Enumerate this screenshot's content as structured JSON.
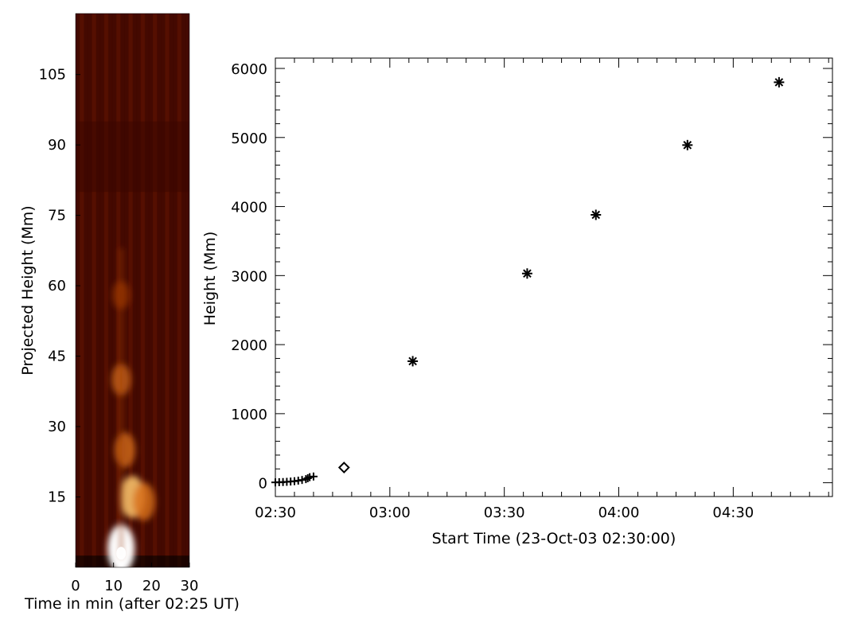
{
  "chart_data": [
    {
      "type": "heatmap",
      "xlabel": "Time in min (after 02:25 UT)",
      "ylabel": "Projected Height (Mm)",
      "xlim": [
        0,
        30
      ],
      "ylim": [
        0,
        118
      ],
      "xticks": [
        "0",
        "10",
        "20",
        "30"
      ],
      "yticks": [
        "15",
        "30",
        "45",
        "60",
        "75",
        "90",
        "105"
      ],
      "colormap": [
        "#000000",
        "#3a0500",
        "#6b1800",
        "#a03a05",
        "#d8701a",
        "#f7c069",
        "#ffffff"
      ],
      "bright_features": [
        {
          "t": 12,
          "h": 4,
          "intensity": 1.0
        },
        {
          "t": 15,
          "h": 15,
          "intensity": 0.78
        },
        {
          "t": 18,
          "h": 14,
          "intensity": 0.62
        },
        {
          "t": 13,
          "h": 25,
          "intensity": 0.5
        },
        {
          "t": 12,
          "h": 40,
          "intensity": 0.38
        },
        {
          "t": 12,
          "h": 58,
          "intensity": 0.25
        }
      ]
    },
    {
      "type": "scatter",
      "title": "",
      "xlabel": "Start Time (23-Oct-03 02:30:00)",
      "ylabel": "Height (Mm)",
      "xticks": [
        "02:30",
        "03:00",
        "03:30",
        "04:00",
        "04:30"
      ],
      "yticks": [
        "0",
        "1000",
        "2000",
        "3000",
        "4000",
        "5000",
        "6000"
      ],
      "xlim_minutes": [
        0,
        146
      ],
      "ylim": [
        -200,
        6150
      ],
      "series": [
        {
          "marker": "plus",
          "points": [
            [
              0,
              5
            ],
            [
              1,
              8
            ],
            [
              2,
              10
            ],
            [
              3,
              13
            ],
            [
              4,
              17
            ],
            [
              5,
              22
            ],
            [
              6,
              30
            ],
            [
              7,
              40
            ],
            [
              8,
              52
            ],
            [
              8.5,
              65
            ],
            [
              9,
              80
            ],
            [
              10,
              90
            ]
          ]
        },
        {
          "marker": "diamond",
          "points": [
            [
              18,
              220
            ]
          ]
        },
        {
          "marker": "asterisk",
          "points": [
            [
              36,
              1760
            ],
            [
              66,
              3030
            ],
            [
              84,
              3880
            ],
            [
              108,
              4890
            ],
            [
              132,
              5800
            ]
          ]
        }
      ]
    }
  ]
}
